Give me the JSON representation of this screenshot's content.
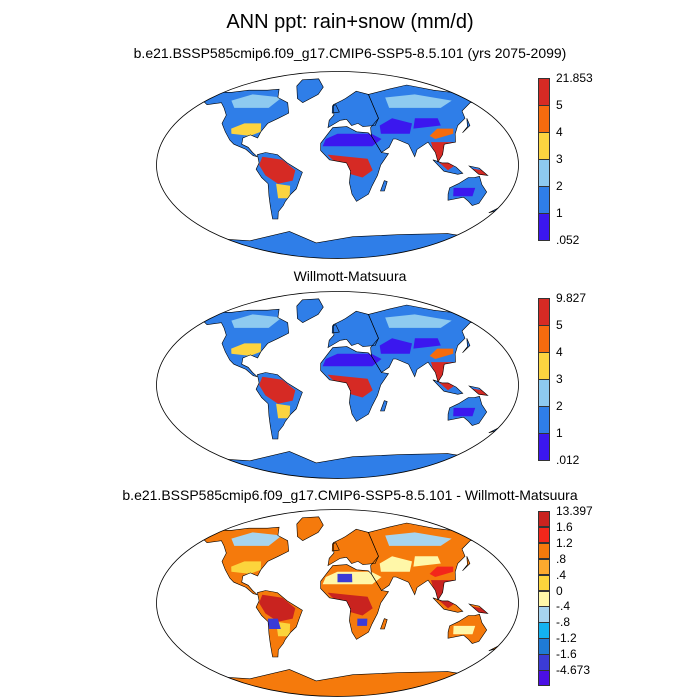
{
  "title": "ANN ppt: rain+snow (mm/d)",
  "panels": [
    {
      "subtitle": "b.e21.BSSP585cmip6.f09_g17.CMIP6-SSP5-8.5.101 (yrs 2075-2099)"
    },
    {
      "subtitle": "Willmott-Matsuura"
    },
    {
      "subtitle": "b.e21.BSSP585cmip6.f09_g17.CMIP6-SSP5-8.5.101 - Willmott-Matsuura"
    }
  ],
  "colorbars": [
    {
      "labels_top_to_bottom": [
        "21.853",
        "5",
        "4",
        "3",
        "2",
        "1",
        ".052"
      ],
      "colors_top_to_bottom": [
        "#d62a24",
        "#f66b0e",
        "#fcd440",
        "#8ecaf0",
        "#2f7ee8",
        "#3b17ef"
      ]
    },
    {
      "labels_top_to_bottom": [
        "9.827",
        "5",
        "4",
        "3",
        "2",
        "1",
        ".012"
      ],
      "colors_top_to_bottom": [
        "#d62a24",
        "#f66b0e",
        "#fcd440",
        "#8ecaf0",
        "#2f7ee8",
        "#3b17ef"
      ]
    },
    {
      "labels_top_to_bottom": [
        "13.397",
        "1.6",
        "1.2",
        ".8",
        ".4",
        "0",
        "-.4",
        "-.8",
        "-1.2",
        "-1.6",
        "-4.673"
      ],
      "colors_top_to_bottom": [
        "#c9231f",
        "#f3271b",
        "#f57a0c",
        "#fca92e",
        "#fcd43c",
        "#fff7a8",
        "#a7d4ee",
        "#13b2ef",
        "#1f7bd6",
        "#3b3bd6",
        "#4b0fe5"
      ]
    }
  ]
}
